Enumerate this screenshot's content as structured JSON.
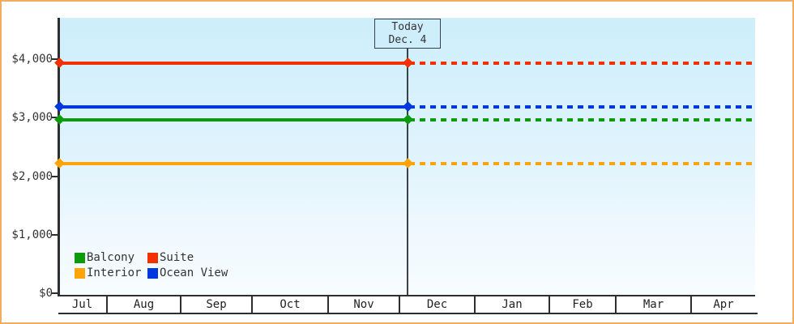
{
  "page": {
    "background": "#ffffff",
    "frame_border_color": "#efae60",
    "axis_color": "#2e2e2e",
    "plot_bg_top": "#cdeefb",
    "plot_bg_bottom": "#f7fcff"
  },
  "today_marker": {
    "line1": "Today",
    "line2": "Dec. 4"
  },
  "chart_data": {
    "type": "line",
    "title": "",
    "xlabel": "",
    "ylabel": "",
    "categories": [
      "Jul",
      "Aug",
      "Sep",
      "Oct",
      "Nov",
      "Dec",
      "Jan",
      "Feb",
      "Mar",
      "Apr"
    ],
    "y_ticks": [
      {
        "value": 0,
        "label": "$0"
      },
      {
        "value": 1000,
        "label": "$1,000"
      },
      {
        "value": 2000,
        "label": "$2,000"
      },
      {
        "value": 3000,
        "label": "$3,000"
      },
      {
        "value": 4000,
        "label": "$4,000"
      }
    ],
    "ylim": [
      0,
      4700
    ],
    "grid": false,
    "legend_position": "inside-bottom-left",
    "series": [
      {
        "name": "Balcony",
        "color": "#0d9b0d",
        "value": 2970,
        "style_before_today": "solid",
        "style_after_today": "dashed"
      },
      {
        "name": "Suite",
        "color": "#f23000",
        "value": 3940,
        "style_before_today": "solid",
        "style_after_today": "dashed"
      },
      {
        "name": "Interior",
        "color": "#ffa408",
        "value": 2220,
        "style_before_today": "solid",
        "style_after_today": "dashed"
      },
      {
        "name": "Ocean View",
        "color": "#0038e0",
        "value": 3190,
        "style_before_today": "solid",
        "style_after_today": "dashed"
      }
    ],
    "annotation": {
      "label": "Today Dec. 4",
      "month": "Dec",
      "day": 4
    }
  }
}
